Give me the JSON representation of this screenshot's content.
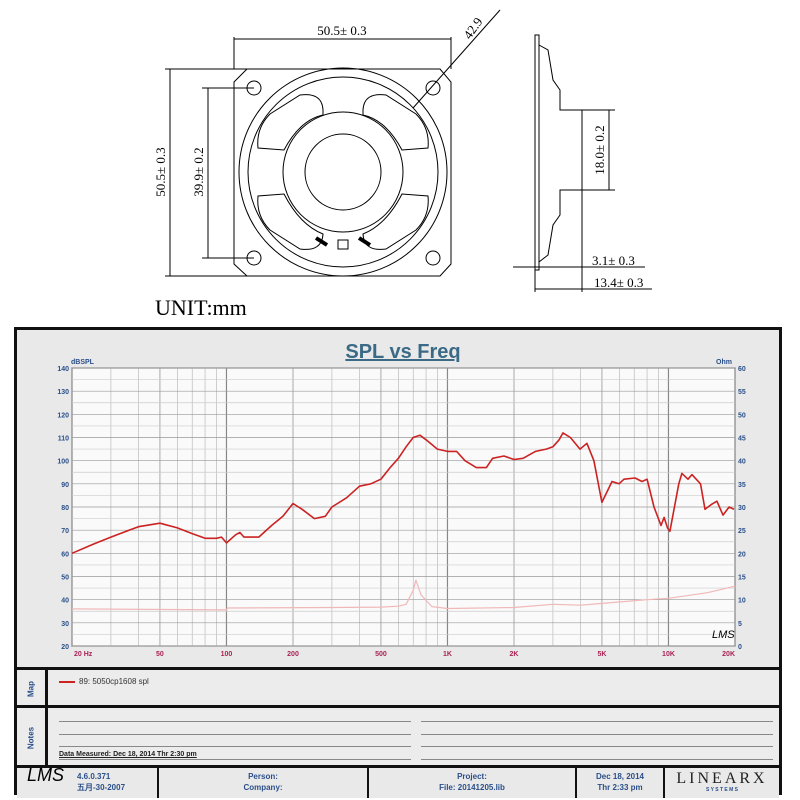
{
  "drawing": {
    "front_width": "50.5± 0.3",
    "diagonal": "42.9",
    "front_height": "50.5± 0.3",
    "hole_spacing": "39.9± 0.2",
    "magnet_diameter": "18.0± 0.2",
    "flange_depth": "3.1± 0.3",
    "total_depth": "13.4± 0.3",
    "unit_label": "UNIT:mm"
  },
  "chart_data": {
    "type": "line",
    "title": "SPL vs Freq",
    "ylabel_left": "dBSPL",
    "ylabel_right": "Ohm",
    "xscale": "log",
    "xlim": [
      20,
      20000
    ],
    "ylim": [
      20,
      140
    ],
    "ylim_right": [
      0,
      60
    ],
    "grid": true,
    "x_tick_labels": [
      "20  Hz",
      "50",
      "100",
      "200",
      "500",
      "1K",
      "2K",
      "5K",
      "10K",
      "20K"
    ],
    "x_tick_values": [
      20,
      50,
      100,
      200,
      500,
      1000,
      2000,
      5000,
      10000,
      20000
    ],
    "y_ticks": [
      20,
      30,
      40,
      50,
      60,
      70,
      80,
      90,
      100,
      110,
      120,
      130,
      140
    ],
    "y_ticks_right": [
      0,
      5,
      10,
      15,
      20,
      25,
      30,
      35,
      40,
      45,
      50,
      55,
      60
    ],
    "watermark": "LMS",
    "series": [
      {
        "name": "89: 5050cp1608  spl",
        "axis": "left",
        "color": "#cc2222",
        "x": [
          20,
          25,
          30,
          40,
          50,
          60,
          70,
          80,
          90,
          95,
          100,
          110,
          115,
          120,
          140,
          160,
          180,
          200,
          220,
          250,
          280,
          300,
          350,
          400,
          450,
          500,
          550,
          600,
          650,
          700,
          750,
          800,
          900,
          1000,
          1100,
          1200,
          1350,
          1500,
          1600,
          1800,
          2000,
          2200,
          2500,
          2800,
          3000,
          3200,
          3334,
          3600,
          3980,
          4276,
          4600,
          5000,
          5550,
          5970,
          6290,
          7060,
          7590,
          8000,
          8600,
          9250,
          9550,
          9900,
          10150,
          11140,
          11500,
          12250,
          12770,
          13960,
          14630,
          15570,
          16560,
          17650,
          18800,
          19800
        ],
        "y": [
          60,
          64,
          67,
          71.5,
          73,
          71,
          68.5,
          66.5,
          66.5,
          67,
          64.5,
          68,
          69,
          67,
          67,
          72,
          76,
          81.5,
          79,
          75,
          76,
          80,
          84,
          89,
          90,
          92,
          97,
          101,
          106,
          110,
          111,
          109,
          105,
          104,
          104,
          100,
          97,
          97,
          101,
          102,
          100.5,
          101,
          104,
          105,
          106,
          109,
          112,
          110,
          105,
          107.5,
          100,
          82,
          91,
          90,
          92,
          92.5,
          91,
          92,
          80,
          72,
          75.5,
          71,
          69.5,
          90,
          94.5,
          92,
          94,
          90,
          79,
          81,
          82.5,
          76.5,
          80,
          79
        ]
      },
      {
        "axis": "right",
        "color": "#f0b8b8",
        "x": [
          20,
          100,
          101,
          300,
          500,
          600,
          650,
          700,
          720,
          760,
          850,
          1000,
          2000,
          3000,
          4000,
          5000,
          8000,
          10000,
          15000,
          20000
        ],
        "y": [
          8,
          7.8,
          8.2,
          8.3,
          8.4,
          8.6,
          9,
          12,
          14.2,
          11,
          8.5,
          8.1,
          8.3,
          9,
          8.8,
          9.2,
          10,
          10.3,
          11.5,
          12.9
        ]
      }
    ]
  },
  "map": {
    "label": "Map",
    "entry": "89: 5050cp1608  spl",
    "entry_color": "#cc2222"
  },
  "notes": {
    "label": "Notes",
    "measured": "Data Measured: Dec 18, 2014  Thr  2:30 pm"
  },
  "footer": {
    "logo": "LMS",
    "version": "4.6.0.371",
    "version_date": "五月-30-2007",
    "person": "Person:",
    "company": "Company:",
    "project": "Project:",
    "file": "File: 20141205.lib",
    "date": "Dec 18, 2014",
    "time": "Thr  2:33 pm",
    "brand": "LINEARX",
    "brand_sub": "S Y S T E M S"
  }
}
